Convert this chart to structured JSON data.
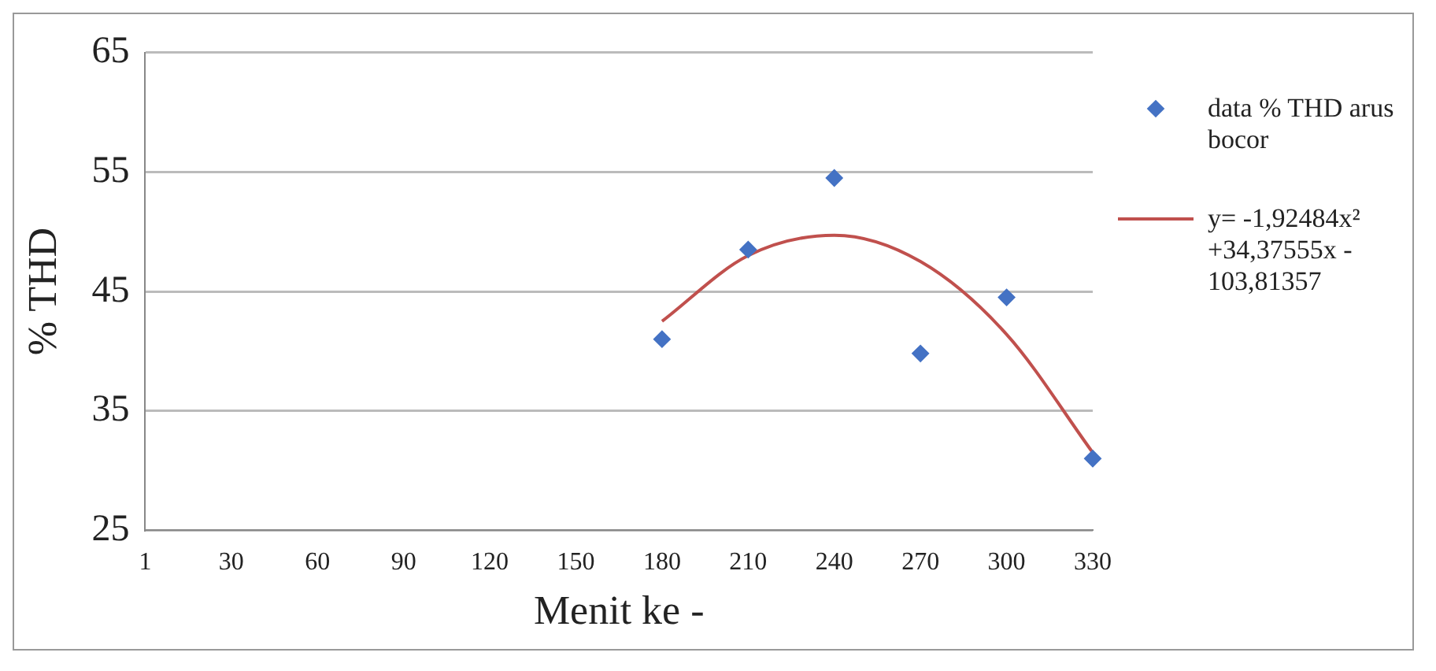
{
  "chart_data": {
    "type": "scatter",
    "xlabel": "Menit ke -",
    "ylabel": "% THD",
    "categories": [
      "1",
      "30",
      "60",
      "90",
      "120",
      "150",
      "180",
      "210",
      "240",
      "270",
      "300",
      "330"
    ],
    "series": [
      {
        "name": "data % THD arus bocor",
        "color": "#4472c4",
        "marker": "diamond",
        "values": [
          null,
          null,
          null,
          null,
          null,
          null,
          41,
          48.5,
          54.5,
          39.8,
          44.5,
          31
        ]
      },
      {
        "name": "y= -1,92484x² +34,37555x - 103,81357",
        "type": "line",
        "color": "#c0504d",
        "marker": "none",
        "values": [
          null,
          null,
          null,
          null,
          null,
          null,
          42.5,
          48,
          49.7,
          47.5,
          41.4,
          31.5
        ]
      }
    ],
    "ylim": [
      25,
      65
    ],
    "yticks": [
      25,
      35,
      45,
      55,
      65
    ],
    "grid": "y",
    "legend": "right"
  }
}
